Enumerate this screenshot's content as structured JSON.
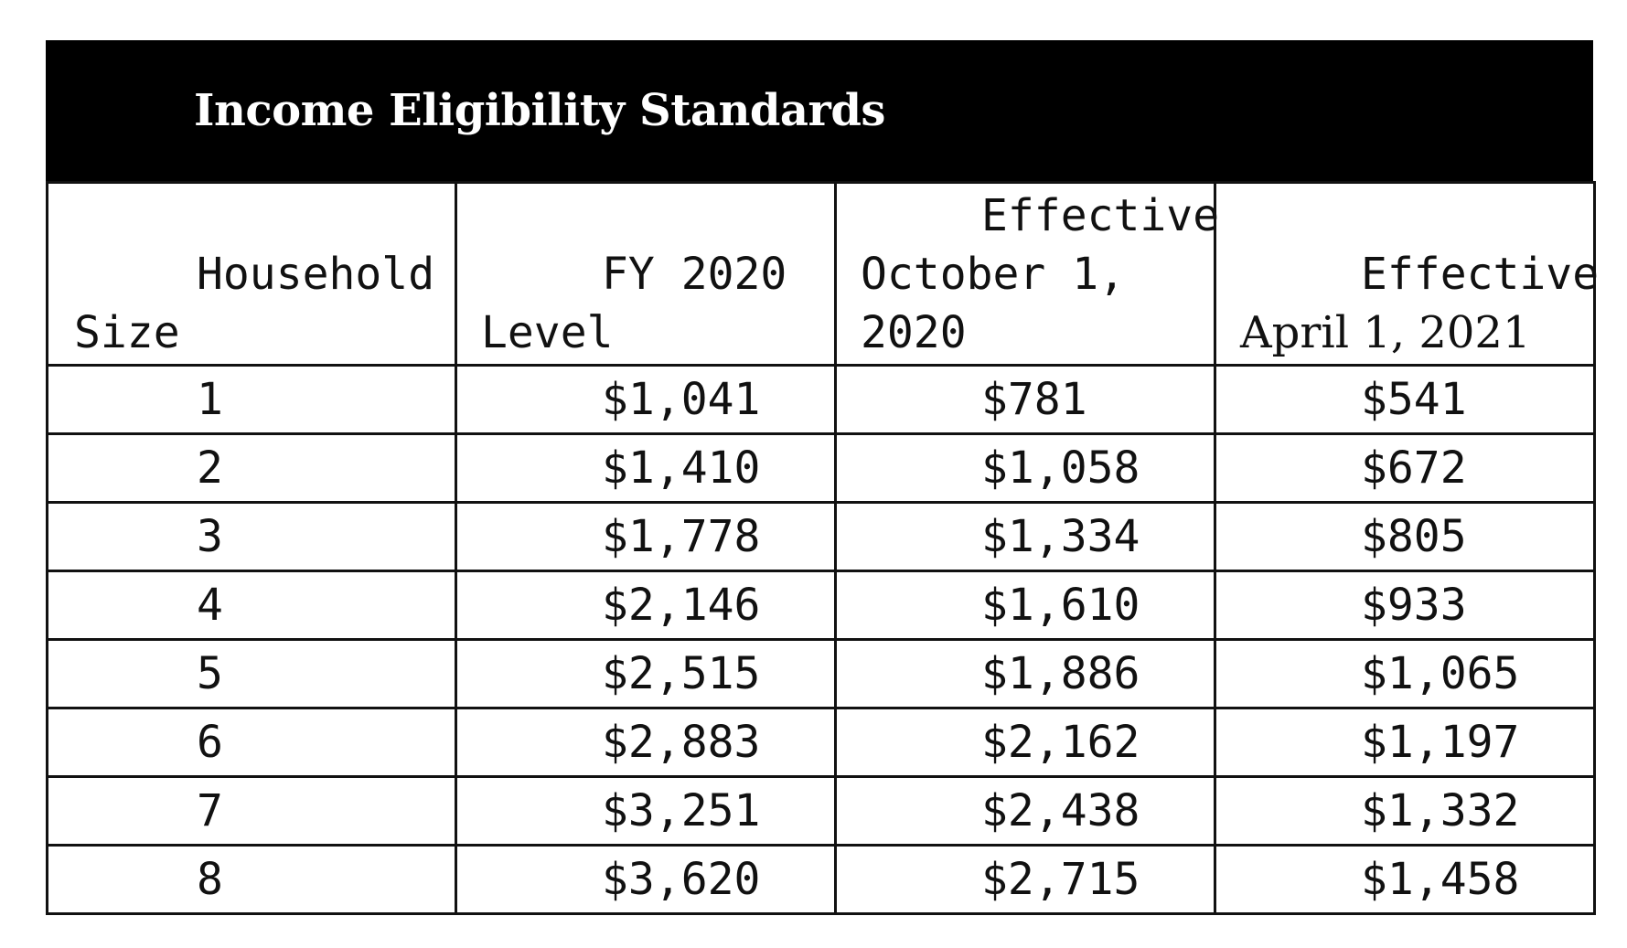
{
  "title": "Income Eligibility Standards",
  "headers": {
    "household_size": [
      "Household",
      "Size"
    ],
    "fy2020": [
      "FY 2020",
      "Level"
    ],
    "oct2020": [
      "Effective",
      "October 1,",
      "2020"
    ],
    "apr2021": [
      "Effective",
      "April 1, 2021"
    ]
  },
  "rows": [
    {
      "size": "1",
      "fy2020": "$1,041",
      "oct2020": "$781",
      "apr2021": "$541"
    },
    {
      "size": "2",
      "fy2020": "$1,410",
      "oct2020": "$1,058",
      "apr2021": "$672"
    },
    {
      "size": "3",
      "fy2020": "$1,778",
      "oct2020": "$1,334",
      "apr2021": "$805"
    },
    {
      "size": "4",
      "fy2020": "$2,146",
      "oct2020": "$1,610",
      "apr2021": "$933"
    },
    {
      "size": "5",
      "fy2020": "$2,515",
      "oct2020": "$1,886",
      "apr2021": "$1,065"
    },
    {
      "size": "6",
      "fy2020": "$2,883",
      "oct2020": "$2,162",
      "apr2021": "$1,197"
    },
    {
      "size": "7",
      "fy2020": "$3,251",
      "oct2020": "$2,438",
      "apr2021": "$1,332"
    },
    {
      "size": "8",
      "fy2020": "$3,620",
      "oct2020": "$2,715",
      "apr2021": "$1,458"
    }
  ]
}
